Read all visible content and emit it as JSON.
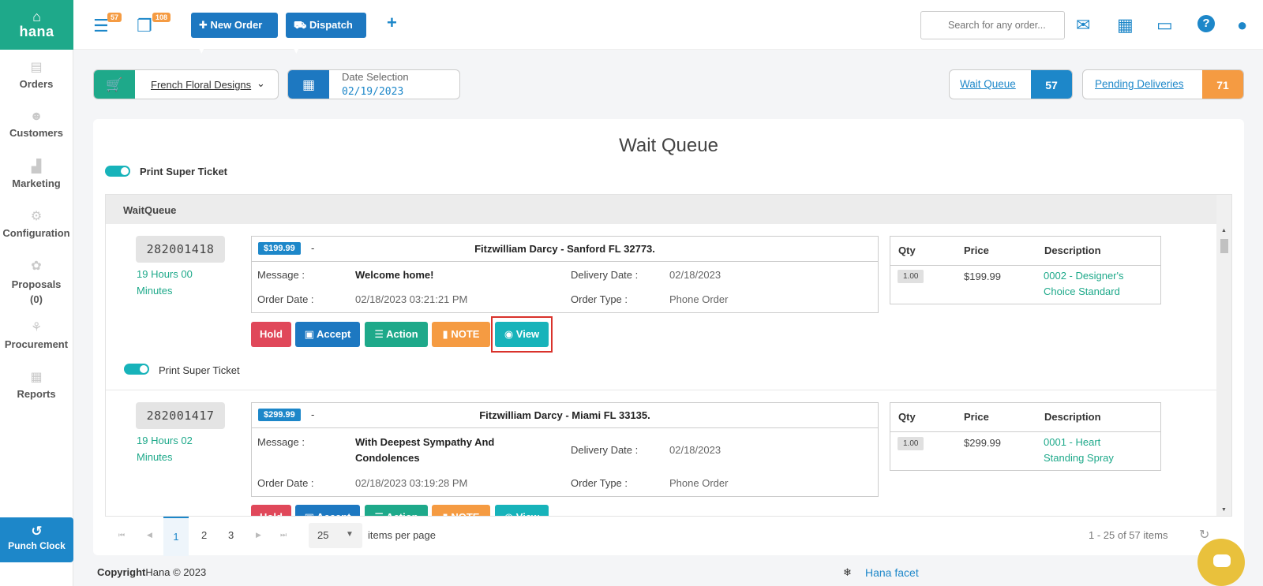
{
  "app": {
    "logo_text": "hana"
  },
  "sidebar": {
    "items": [
      {
        "label": "Orders"
      },
      {
        "label": "Customers"
      },
      {
        "label": "Marketing"
      },
      {
        "label": "Configuration"
      },
      {
        "label": "Proposals"
      },
      {
        "label": "(0)"
      },
      {
        "label": "Procurement"
      },
      {
        "label": "Reports"
      }
    ],
    "punch_clock": "Punch Clock"
  },
  "topbar": {
    "queue_badge": "57",
    "copy_badge": "108",
    "new_order": "New Order",
    "dispatch": "Dispatch",
    "search_placeholder": "Search for any order..."
  },
  "filters": {
    "store": "French Floral Designs",
    "date_label": "Date Selection",
    "date_value": "02/19/2023",
    "wait_queue_label": "Wait Queue",
    "wait_queue_count": "57",
    "pending_label": "Pending Deliveries",
    "pending_count": "71"
  },
  "main": {
    "title": "Wait Queue",
    "print_super_ticket": "Print Super Ticket",
    "grid_header": "WaitQueue",
    "labels": {
      "message": "Message :",
      "delivery_date": "Delivery Date :",
      "order_date": "Order Date :",
      "order_type": "Order Type :",
      "qty": "Qty",
      "price": "Price",
      "description": "Description"
    },
    "buttons": {
      "hold": "Hold",
      "accept": "Accept",
      "action": "Action",
      "note": "NOTE",
      "view": "View"
    },
    "orders": [
      {
        "id": "282001418",
        "elapsed_1": "19 Hours 00",
        "elapsed_2": "Minutes",
        "price": "$199.99",
        "dash": "-",
        "recipient": "Fitzwilliam Darcy - Sanford FL 32773.",
        "message": "Welcome home!",
        "message_2": "",
        "delivery_date": "02/18/2023",
        "order_date": "02/18/2023 03:21:21 PM",
        "order_type": "Phone Order",
        "item_qty": "1.00",
        "item_price": "$199.99",
        "item_desc_1": "0002 - Designer's",
        "item_desc_2": "Choice Standard",
        "print_label": "Print Super Ticket"
      },
      {
        "id": "282001417",
        "elapsed_1": "19 Hours 02",
        "elapsed_2": "Minutes",
        "price": "$299.99",
        "dash": "-",
        "recipient": "Fitzwilliam Darcy - Miami FL 33135.",
        "message": "With Deepest Sympathy And",
        "message_2": "Condolences",
        "delivery_date": "02/18/2023",
        "order_date": "02/18/2023 03:19:28 PM",
        "order_type": "Phone Order",
        "item_qty": "1.00",
        "item_price": "$299.99",
        "item_desc_1": "0001 - Heart",
        "item_desc_2": "Standing Spray"
      }
    ]
  },
  "pager": {
    "pages": [
      "1",
      "2",
      "3"
    ],
    "page_size": "25",
    "items_per_page": "items per page",
    "summary": "1 - 25 of 57 items"
  },
  "footer": {
    "copyright_prefix": "Copyright",
    "copyright_rest": "Hana © 2023",
    "facet": "Hana facet"
  },
  "colors": {
    "brand_green": "#1ea98a",
    "brand_blue": "#1d87c9",
    "orange": "#f59b42",
    "hold_red": "#e0485a",
    "view_teal": "#17b3ba"
  }
}
